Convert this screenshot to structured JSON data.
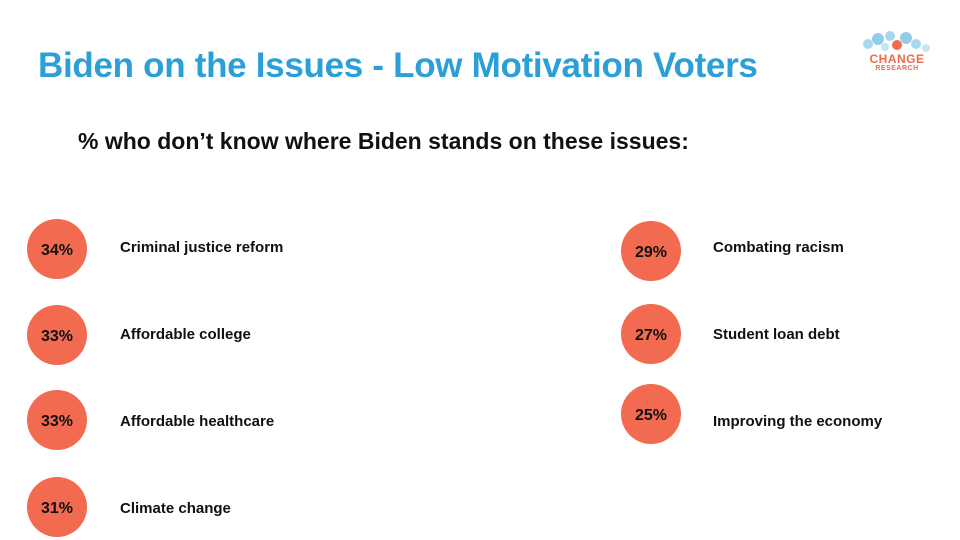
{
  "title": "Biden on the Issues - Low Motivation Voters",
  "subtitle": "% who don’t know where Biden stands on these issues:",
  "logo": {
    "line1": "CHANGE",
    "line2": "RESEARCH"
  },
  "colors": {
    "accent": "#f26a4f",
    "title": "#2a9fd8",
    "text": "#111111"
  },
  "chart_data": {
    "type": "table",
    "categories": [
      "Criminal justice reform",
      "Affordable college",
      "Affordable healthcare",
      "Climate change",
      "Combating racism",
      "Student loan debt",
      "Improving the economy"
    ],
    "values": [
      34,
      33,
      33,
      31,
      29,
      27,
      25
    ],
    "value_labels": [
      "34%",
      "33%",
      "33%",
      "31%",
      "29%",
      "27%",
      "25%"
    ]
  }
}
